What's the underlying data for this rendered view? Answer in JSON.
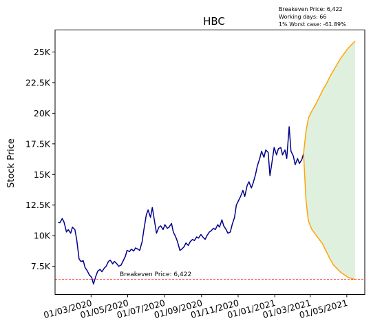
{
  "chart_data": {
    "type": "line",
    "title": "HBC",
    "ylabel": "Stock Price",
    "xlabel": "",
    "xlim": [
      "2020-01-01",
      "2021-05-31"
    ],
    "ylim": [
      5200,
      26800
    ],
    "grid": false,
    "annotations": {
      "info_lines": [
        "Breakeven Price: 6,422",
        "Working days: 66",
        "1% Worst case: -61.89%"
      ],
      "breakeven_label": "Breakeven Price: 6,422",
      "breakeven_value": 6422
    },
    "x_ticks": [
      {
        "date": "2020-03-01",
        "label": "01/03/2020"
      },
      {
        "date": "2020-05-01",
        "label": "01/05/2020"
      },
      {
        "date": "2020-07-01",
        "label": "01/07/2020"
      },
      {
        "date": "2020-09-01",
        "label": "01/09/2020"
      },
      {
        "date": "2020-11-01",
        "label": "01/11/2020"
      },
      {
        "date": "2021-01-01",
        "label": "01/01/2021"
      },
      {
        "date": "2021-03-01",
        "label": "01/03/2021"
      },
      {
        "date": "2021-05-01",
        "label": "01/05/2021"
      }
    ],
    "y_ticks": [
      {
        "value": 7500,
        "label": "7.5K"
      },
      {
        "value": 10000,
        "label": "10K"
      },
      {
        "value": 12500,
        "label": "12.5K"
      },
      {
        "value": 15000,
        "label": "15K"
      },
      {
        "value": 17500,
        "label": "17.5K"
      },
      {
        "value": 20000,
        "label": "20K"
      },
      {
        "value": 22500,
        "label": "22.5K"
      },
      {
        "value": 25000,
        "label": "25K"
      }
    ],
    "series": [
      {
        "color": "#00008b",
        "points": [
          [
            "2020-01-06",
            11100
          ],
          [
            "2020-01-09",
            11050
          ],
          [
            "2020-01-13",
            11400
          ],
          [
            "2020-01-16",
            11100
          ],
          [
            "2020-01-20",
            10300
          ],
          [
            "2020-01-23",
            10500
          ],
          [
            "2020-01-27",
            10200
          ],
          [
            "2020-01-30",
            10700
          ],
          [
            "2020-02-03",
            10500
          ],
          [
            "2020-02-06",
            9700
          ],
          [
            "2020-02-10",
            8100
          ],
          [
            "2020-02-13",
            7900
          ],
          [
            "2020-02-17",
            7950
          ],
          [
            "2020-02-20",
            7400
          ],
          [
            "2020-02-24",
            7100
          ],
          [
            "2020-02-27",
            6800
          ],
          [
            "2020-03-02",
            6600
          ],
          [
            "2020-03-05",
            6050
          ],
          [
            "2020-03-09",
            6700
          ],
          [
            "2020-03-12",
            7100
          ],
          [
            "2020-03-16",
            7250
          ],
          [
            "2020-03-19",
            7050
          ],
          [
            "2020-03-23",
            7350
          ],
          [
            "2020-03-26",
            7500
          ],
          [
            "2020-03-30",
            7900
          ],
          [
            "2020-04-02",
            8000
          ],
          [
            "2020-04-06",
            7700
          ],
          [
            "2020-04-09",
            7900
          ],
          [
            "2020-04-13",
            7700
          ],
          [
            "2020-04-16",
            7500
          ],
          [
            "2020-04-20",
            7600
          ],
          [
            "2020-04-23",
            7900
          ],
          [
            "2020-04-27",
            8300
          ],
          [
            "2020-04-30",
            8800
          ],
          [
            "2020-05-04",
            8700
          ],
          [
            "2020-05-07",
            8900
          ],
          [
            "2020-05-11",
            8750
          ],
          [
            "2020-05-14",
            9000
          ],
          [
            "2020-05-18",
            8900
          ],
          [
            "2020-05-21",
            8800
          ],
          [
            "2020-05-25",
            9500
          ],
          [
            "2020-05-28",
            10500
          ],
          [
            "2020-06-01",
            11700
          ],
          [
            "2020-06-04",
            12100
          ],
          [
            "2020-06-08",
            11500
          ],
          [
            "2020-06-11",
            12300
          ],
          [
            "2020-06-15",
            11100
          ],
          [
            "2020-06-18",
            10200
          ],
          [
            "2020-06-22",
            10700
          ],
          [
            "2020-06-25",
            10800
          ],
          [
            "2020-06-29",
            10500
          ],
          [
            "2020-07-02",
            10900
          ],
          [
            "2020-07-06",
            10600
          ],
          [
            "2020-07-09",
            10700
          ],
          [
            "2020-07-13",
            11000
          ],
          [
            "2020-07-16",
            10300
          ],
          [
            "2020-07-20",
            9900
          ],
          [
            "2020-07-23",
            9500
          ],
          [
            "2020-07-27",
            8800
          ],
          [
            "2020-07-30",
            8900
          ],
          [
            "2020-08-03",
            9100
          ],
          [
            "2020-08-06",
            9400
          ],
          [
            "2020-08-10",
            9200
          ],
          [
            "2020-08-13",
            9500
          ],
          [
            "2020-08-17",
            9700
          ],
          [
            "2020-08-20",
            9600
          ],
          [
            "2020-08-24",
            9900
          ],
          [
            "2020-08-27",
            9800
          ],
          [
            "2020-08-31",
            10100
          ],
          [
            "2020-09-03",
            9900
          ],
          [
            "2020-09-07",
            9700
          ],
          [
            "2020-09-10",
            10000
          ],
          [
            "2020-09-14",
            10300
          ],
          [
            "2020-09-17",
            10400
          ],
          [
            "2020-09-21",
            10600
          ],
          [
            "2020-09-24",
            10500
          ],
          [
            "2020-09-28",
            10900
          ],
          [
            "2020-10-01",
            10700
          ],
          [
            "2020-10-05",
            11300
          ],
          [
            "2020-10-08",
            10800
          ],
          [
            "2020-10-12",
            10500
          ],
          [
            "2020-10-15",
            10200
          ],
          [
            "2020-10-19",
            10300
          ],
          [
            "2020-10-22",
            10900
          ],
          [
            "2020-10-26",
            11500
          ],
          [
            "2020-10-29",
            12500
          ],
          [
            "2020-11-02",
            12900
          ],
          [
            "2020-11-05",
            13200
          ],
          [
            "2020-11-09",
            13700
          ],
          [
            "2020-11-12",
            13200
          ],
          [
            "2020-11-16",
            14100
          ],
          [
            "2020-11-19",
            14400
          ],
          [
            "2020-11-23",
            13900
          ],
          [
            "2020-11-26",
            14300
          ],
          [
            "2020-11-30",
            15000
          ],
          [
            "2020-12-03",
            15700
          ],
          [
            "2020-12-07",
            16300
          ],
          [
            "2020-12-10",
            16900
          ],
          [
            "2020-12-14",
            16400
          ],
          [
            "2020-12-17",
            17000
          ],
          [
            "2020-12-21",
            16800
          ],
          [
            "2020-12-24",
            14900
          ],
          [
            "2020-12-28",
            16200
          ],
          [
            "2020-12-31",
            17200
          ],
          [
            "2021-01-04",
            16600
          ],
          [
            "2021-01-07",
            17100
          ],
          [
            "2021-01-11",
            17200
          ],
          [
            "2021-01-14",
            16600
          ],
          [
            "2021-01-18",
            17000
          ],
          [
            "2021-01-21",
            16300
          ],
          [
            "2021-01-25",
            18900
          ],
          [
            "2021-01-28",
            16900
          ],
          [
            "2021-02-01",
            16500
          ],
          [
            "2021-02-04",
            15800
          ],
          [
            "2021-02-08",
            16300
          ],
          [
            "2021-02-11",
            15900
          ],
          [
            "2021-02-15",
            16200
          ],
          [
            "2021-02-18",
            16700
          ]
        ]
      },
      {
        "color": "#ffa500",
        "points": [
          [
            "2021-02-18",
            16700
          ],
          [
            "2021-02-22",
            18500
          ],
          [
            "2021-02-26",
            19600
          ],
          [
            "2021-03-04",
            20200
          ],
          [
            "2021-03-10",
            20700
          ],
          [
            "2021-03-16",
            21300
          ],
          [
            "2021-03-22",
            21900
          ],
          [
            "2021-03-28",
            22400
          ],
          [
            "2021-04-03",
            23000
          ],
          [
            "2021-04-09",
            23500
          ],
          [
            "2021-04-15",
            24000
          ],
          [
            "2021-04-21",
            24500
          ],
          [
            "2021-04-27",
            24900
          ],
          [
            "2021-05-03",
            25300
          ],
          [
            "2021-05-09",
            25600
          ],
          [
            "2021-05-15",
            25900
          ]
        ]
      },
      {
        "color": "#ffa500",
        "points": [
          [
            "2021-02-18",
            16700
          ],
          [
            "2021-02-22",
            12900
          ],
          [
            "2021-02-26",
            11200
          ],
          [
            "2021-03-04",
            10500
          ],
          [
            "2021-03-10",
            10100
          ],
          [
            "2021-03-16",
            9700
          ],
          [
            "2021-03-22",
            9300
          ],
          [
            "2021-03-28",
            8700
          ],
          [
            "2021-04-03",
            8100
          ],
          [
            "2021-04-09",
            7600
          ],
          [
            "2021-04-15",
            7300
          ],
          [
            "2021-04-21",
            7000
          ],
          [
            "2021-04-27",
            6800
          ],
          [
            "2021-05-03",
            6600
          ],
          [
            "2021-05-09",
            6500
          ],
          [
            "2021-05-15",
            6422
          ]
        ]
      }
    ],
    "fill_between": {
      "color": "#dff0df",
      "upper_series": 1,
      "lower_series": 2
    }
  }
}
